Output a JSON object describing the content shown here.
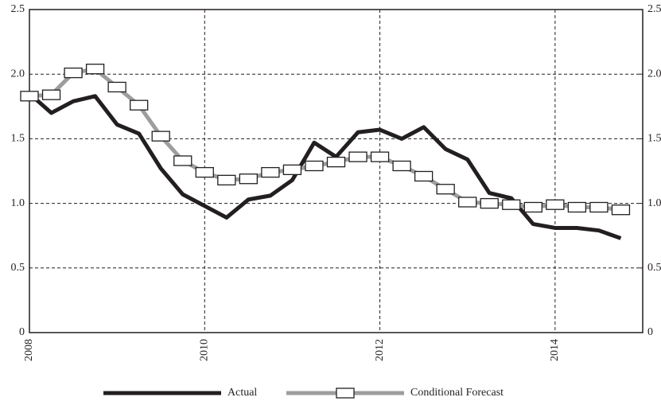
{
  "chart_data": {
    "type": "line",
    "x": [
      2008,
      2008.25,
      2008.5,
      2008.75,
      2009,
      2009.25,
      2009.5,
      2009.75,
      2010,
      2010.25,
      2010.5,
      2010.75,
      2011,
      2011.25,
      2011.5,
      2011.75,
      2012,
      2012.25,
      2012.5,
      2012.75,
      2013,
      2013.25,
      2013.5,
      2013.75,
      2014,
      2014.25,
      2014.5,
      2014.75
    ],
    "series": [
      {
        "name": "Actual",
        "color": "#231f20",
        "values": [
          1.85,
          1.7,
          1.79,
          1.83,
          1.61,
          1.54,
          1.27,
          1.07,
          0.98,
          0.89,
          1.03,
          1.06,
          1.18,
          1.47,
          1.36,
          1.55,
          1.57,
          1.5,
          1.59,
          1.42,
          1.34,
          1.08,
          1.04,
          0.84,
          0.81,
          0.81,
          0.79,
          0.73
        ]
      },
      {
        "name": "Conditional Forecast",
        "color": "#9d9d9d",
        "values": [
          1.83,
          1.84,
          2.01,
          2.04,
          1.9,
          1.76,
          1.52,
          1.33,
          1.24,
          1.18,
          1.19,
          1.24,
          1.26,
          1.29,
          1.32,
          1.36,
          1.36,
          1.29,
          1.21,
          1.11,
          1.01,
          1.0,
          0.99,
          0.97,
          0.99,
          0.97,
          0.97,
          0.95
        ]
      }
    ],
    "xlim": [
      2008,
      2015
    ],
    "xticks": [
      2008,
      2010,
      2012,
      2014
    ],
    "ylim": [
      0,
      2.5
    ],
    "yticks": [
      0,
      0.5,
      {
        "value": 1,
        "label": "1.0"
      },
      1.5,
      {
        "value": 2,
        "label": "2.0"
      },
      2.5
    ],
    "y2lim": [
      0,
      2.5
    ],
    "y2ticks": [
      0,
      0.5,
      {
        "value": 1,
        "label": "1.0"
      },
      1.5,
      {
        "value": 2,
        "label": "2.0"
      },
      2.5
    ],
    "grid": true
  }
}
